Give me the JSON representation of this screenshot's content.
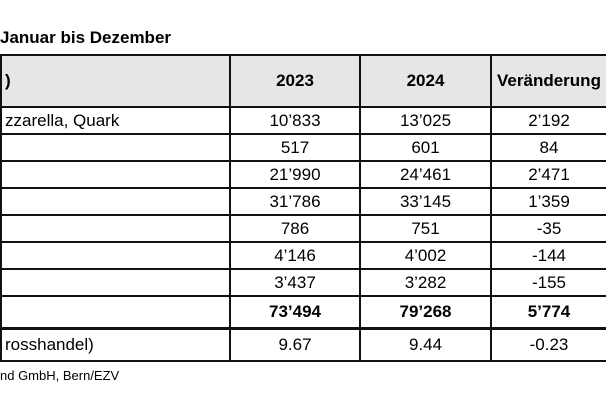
{
  "title": "Januar bis Dezember",
  "table": {
    "headers": [
      ")",
      "2023",
      "2024",
      "Veränderung"
    ],
    "rows": [
      [
        "zzarella, Quark",
        "10’833",
        "13’025",
        "2’192"
      ],
      [
        "",
        "517",
        "601",
        "84"
      ],
      [
        "",
        "21’990",
        "24’461",
        "2’471"
      ],
      [
        "",
        "31’786",
        "33’145",
        "1’359"
      ],
      [
        "",
        "786",
        "751",
        "-35"
      ],
      [
        "",
        "4’146",
        "4’002",
        "-144"
      ],
      [
        "",
        "3’437",
        "3’282",
        "-155"
      ]
    ],
    "total": [
      "",
      "73’494",
      "79’268",
      "5’774"
    ],
    "last": [
      "rosshandel)",
      "9.67",
      "9.44",
      "-0.23"
    ]
  },
  "footnote": "nd GmbH, Bern/EZV"
}
